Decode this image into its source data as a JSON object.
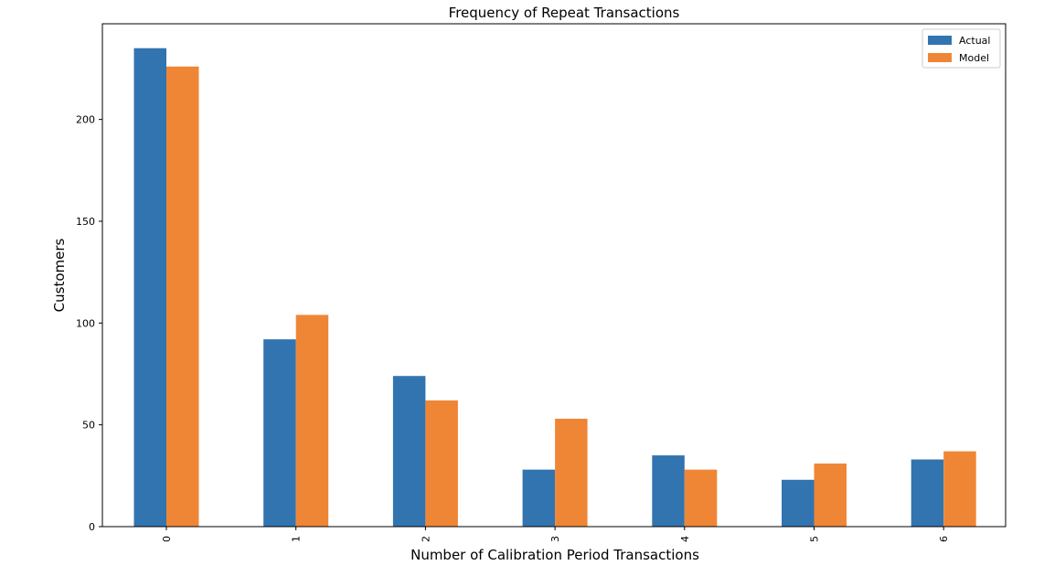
{
  "chart_data": {
    "type": "bar",
    "title": "Frequency of Repeat Transactions",
    "xlabel": "Number of Calibration Period Transactions",
    "ylabel": "Customers",
    "categories": [
      "0",
      "1",
      "2",
      "3",
      "4",
      "5",
      "6"
    ],
    "series": [
      {
        "name": "Actual",
        "values": [
          235,
          92,
          74,
          28,
          35,
          23,
          33
        ],
        "color": "#3274b0"
      },
      {
        "name": "Model",
        "values": [
          226,
          104,
          62,
          53,
          28,
          31,
          37
        ],
        "color": "#ef8636"
      }
    ],
    "ylim": [
      0,
      247
    ],
    "yticks": [
      0,
      50,
      100,
      150,
      200
    ],
    "grid": false,
    "legend_position": "top-right"
  }
}
